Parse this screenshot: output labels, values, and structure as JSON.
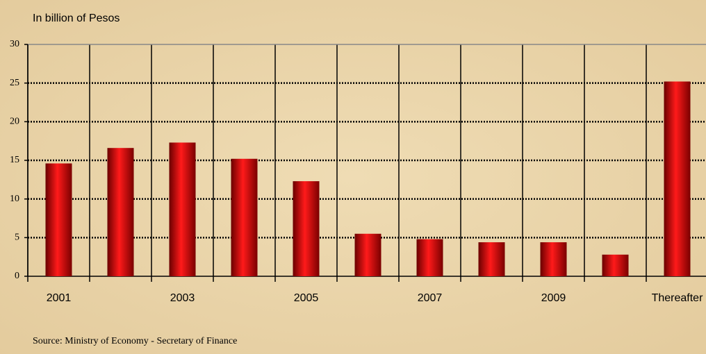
{
  "chart_data": {
    "type": "bar",
    "y_axis_label": "In billion of Pesos",
    "source": "Source: Ministry of Economy - Secretary of Finance",
    "categories": [
      "2001",
      null,
      "2003",
      null,
      "2005",
      null,
      "2007",
      null,
      "2009",
      null,
      "Thereafter"
    ],
    "values": [
      14.6,
      16.6,
      17.3,
      15.2,
      12.3,
      5.5,
      4.8,
      4.4,
      4.4,
      2.8,
      25.2
    ],
    "color": "#e00000",
    "ylim": [
      0,
      30
    ],
    "yticks": [
      0,
      5,
      10,
      15,
      20,
      25,
      30
    ],
    "grid": true
  }
}
